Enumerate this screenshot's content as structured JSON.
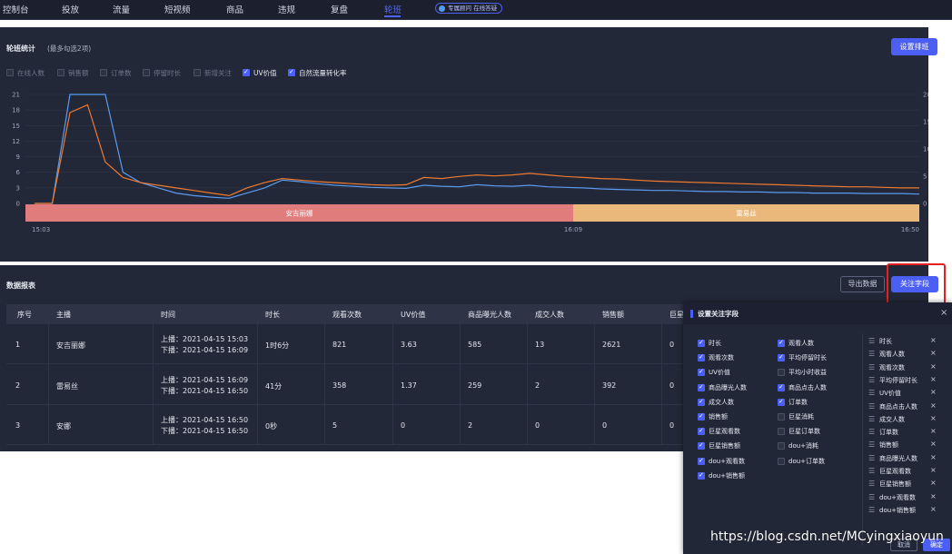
{
  "nav": {
    "items": [
      "控制台",
      "投放",
      "流量",
      "短视频",
      "商品",
      "违规",
      "复盘",
      "轮班"
    ],
    "active": "轮班",
    "badge": "专属顾问 在线答疑"
  },
  "shift_stats": {
    "title": "轮班统计",
    "subtitle": "(最多勾选2项)",
    "sort_button": "设置排班",
    "metrics": [
      {
        "label": "在线人数",
        "checked": false
      },
      {
        "label": "销售额",
        "checked": false
      },
      {
        "label": "订单数",
        "checked": false
      },
      {
        "label": "停留时长",
        "checked": false
      },
      {
        "label": "新增关注",
        "checked": false
      },
      {
        "label": "UV价值",
        "checked": true
      },
      {
        "label": "自然流量转化率",
        "checked": true
      }
    ]
  },
  "chart_data": {
    "type": "line",
    "y_left_ticks": [
      "21",
      "18",
      "15",
      "12",
      "9",
      "6",
      "3",
      "0"
    ],
    "y_right_ticks": [
      "20",
      "15",
      "10",
      "5",
      "0"
    ],
    "x_ticks": [
      "15:03",
      "16:09",
      "16:50"
    ],
    "ylim_left": [
      0,
      21
    ],
    "ylim_right": [
      0,
      20
    ],
    "series": [
      {
        "color": "#5b9bf0",
        "axis": "left",
        "values": [
          0,
          0,
          21,
          21,
          21,
          6,
          4,
          3,
          2,
          1.5,
          1.2,
          1,
          2,
          3,
          4.5,
          4.2,
          3.8,
          3.5,
          3.3,
          3.1,
          3,
          2.9,
          3.5,
          3.3,
          3.2,
          3.6,
          3.4,
          3.3,
          3.5,
          3.2,
          3.1,
          3,
          2.8,
          2.7,
          2.6,
          2.5,
          2.5,
          2.4,
          2.3,
          2.3,
          2.2,
          2.2,
          2.1,
          2.1,
          2,
          2,
          2,
          1.9,
          1.9,
          1.9,
          1.8
        ]
      },
      {
        "color": "#ef7a30",
        "axis": "left",
        "values": [
          0,
          0,
          17.5,
          19,
          8,
          5,
          4,
          3.5,
          3,
          2.5,
          2,
          1.5,
          3,
          4,
          4.8,
          4.5,
          4.2,
          4,
          3.8,
          3.6,
          3.5,
          3.6,
          5,
          4.8,
          5.2,
          5.5,
          5.3,
          5.5,
          5.8,
          5.5,
          5.2,
          5,
          4.8,
          4.7,
          4.5,
          4.3,
          4.2,
          4.1,
          4,
          3.9,
          3.8,
          3.7,
          3.6,
          3.5,
          3.4,
          3.3,
          3.2,
          3.2,
          3.1,
          3,
          3
        ]
      }
    ],
    "shifts": [
      {
        "name": "安吉丽娜",
        "color": "#e07c7c"
      },
      {
        "name": "雷易丝",
        "color": "#eab87a"
      }
    ]
  },
  "report": {
    "title": "数据报表",
    "export_button": "导出数据",
    "fields_button": "关注字段",
    "columns": [
      "序号",
      "主播",
      "时间",
      "时长",
      "观看次数",
      "UV价值",
      "商品曝光人数",
      "成交人数",
      "销售额",
      "巨星"
    ],
    "rows": [
      {
        "idx": "1",
        "host": "安吉丽娜",
        "start": "上播：2021-04-15 15:03",
        "end": "下播：2021-04-15 16:09",
        "duration": "1时6分",
        "views": "821",
        "uv": "3.63",
        "exposure": "585",
        "buyers": "13",
        "sales": "2621",
        "star": "0"
      },
      {
        "idx": "2",
        "host": "雷易丝",
        "start": "上播：2021-04-15 16:09",
        "end": "下播：2021-04-15 16:50",
        "duration": "41分",
        "views": "358",
        "uv": "1.37",
        "exposure": "259",
        "buyers": "2",
        "sales": "392",
        "star": "0"
      },
      {
        "idx": "3",
        "host": "安娜",
        "start": "上播：2021-04-15 16:50",
        "end": "下播：2021-04-15 16:50",
        "duration": "0秒",
        "views": "5",
        "uv": "0",
        "exposure": "2",
        "buyers": "0",
        "sales": "0",
        "star": "0"
      }
    ]
  },
  "modal": {
    "title": "设置关注字段",
    "close": "×",
    "col1": [
      {
        "label": "时长",
        "checked": true
      },
      {
        "label": "观看次数",
        "checked": true
      },
      {
        "label": "UV价值",
        "checked": true
      },
      {
        "label": "商品曝光人数",
        "checked": true
      },
      {
        "label": "成交人数",
        "checked": true
      },
      {
        "label": "销售额",
        "checked": true
      },
      {
        "label": "巨星观看数",
        "checked": true
      },
      {
        "label": "巨星销售额",
        "checked": true
      },
      {
        "label": "dou+观看数",
        "checked": true
      },
      {
        "label": "dou+销售额",
        "checked": true
      }
    ],
    "col2": [
      {
        "label": "观看人数",
        "checked": true
      },
      {
        "label": "平均停留时长",
        "checked": true
      },
      {
        "label": "平均小时收益",
        "checked": false
      },
      {
        "label": "商品点击人数",
        "checked": true
      },
      {
        "label": "订单数",
        "checked": true
      },
      {
        "label": "巨星消耗",
        "checked": false
      },
      {
        "label": "巨星订单数",
        "checked": false
      },
      {
        "label": "dou+消耗",
        "checked": false
      },
      {
        "label": "dou+订单数",
        "checked": false
      }
    ],
    "order": [
      "时长",
      "观看人数",
      "观看次数",
      "平均停留时长",
      "UV价值",
      "商品点击人数",
      "成交人数",
      "订单数",
      "销售额",
      "商品曝光人数",
      "巨星观看数",
      "巨星销售额",
      "dou+观看数",
      "dou+销售额"
    ],
    "remove": "×",
    "cancel": "取消",
    "ok": "确定"
  },
  "watermark": "https://blog.csdn.net/MCyingxiaoyun"
}
